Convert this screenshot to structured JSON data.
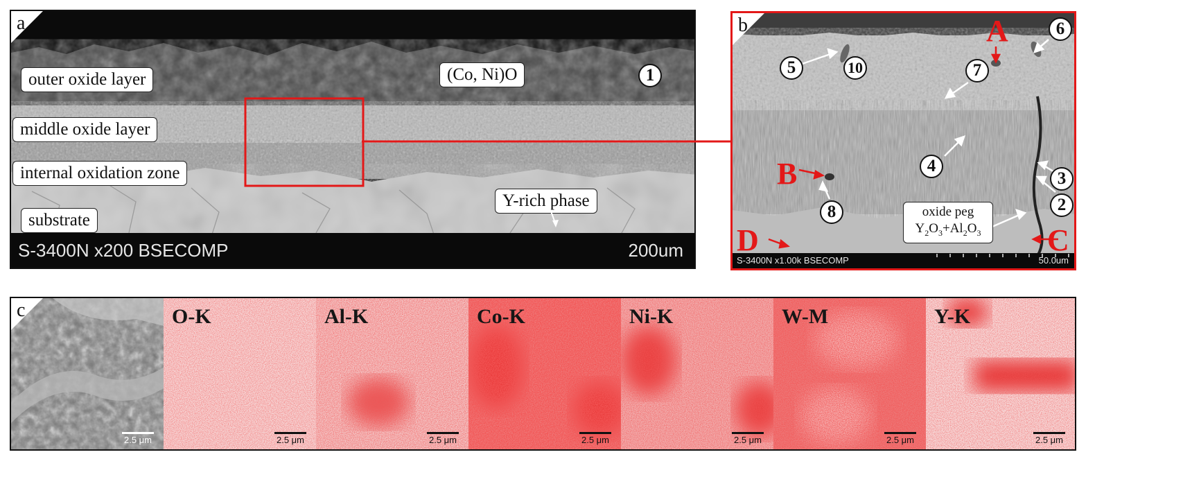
{
  "panel_a": {
    "letter": "a",
    "labels": {
      "outer": "outer oxide layer",
      "middle": "middle oxide layer",
      "internal": "internal oxidation zone",
      "substrate": "substrate",
      "oxide": "(Co, Ni)O",
      "yrich": "Y-rich phase"
    },
    "marker": "1",
    "sem_info": "S-3400N x200 BSECOMP",
    "scale": "200um"
  },
  "panel_b": {
    "letter": "b",
    "markers": [
      "5",
      "10",
      "7",
      "6",
      "4",
      "3",
      "2",
      "8"
    ],
    "red_letters": {
      "A": "A",
      "B": "B",
      "C": "C",
      "D": "D"
    },
    "peg_line1": "oxide peg",
    "peg_line2_parts": [
      "Y",
      "2",
      "O",
      "3",
      "+Al",
      "2",
      "O",
      "3"
    ],
    "sem_info": "S-3400N x1.00k BSECOMP",
    "scale": "50.0um"
  },
  "panel_c": {
    "letter": "c",
    "maps": [
      "O-K",
      "Al-K",
      "Co-K",
      "Ni-K",
      "W-M",
      "Y-K"
    ],
    "scale": "2.5 μm"
  },
  "colors": {
    "highlight": "#e31818",
    "map_red": "#e31818"
  }
}
